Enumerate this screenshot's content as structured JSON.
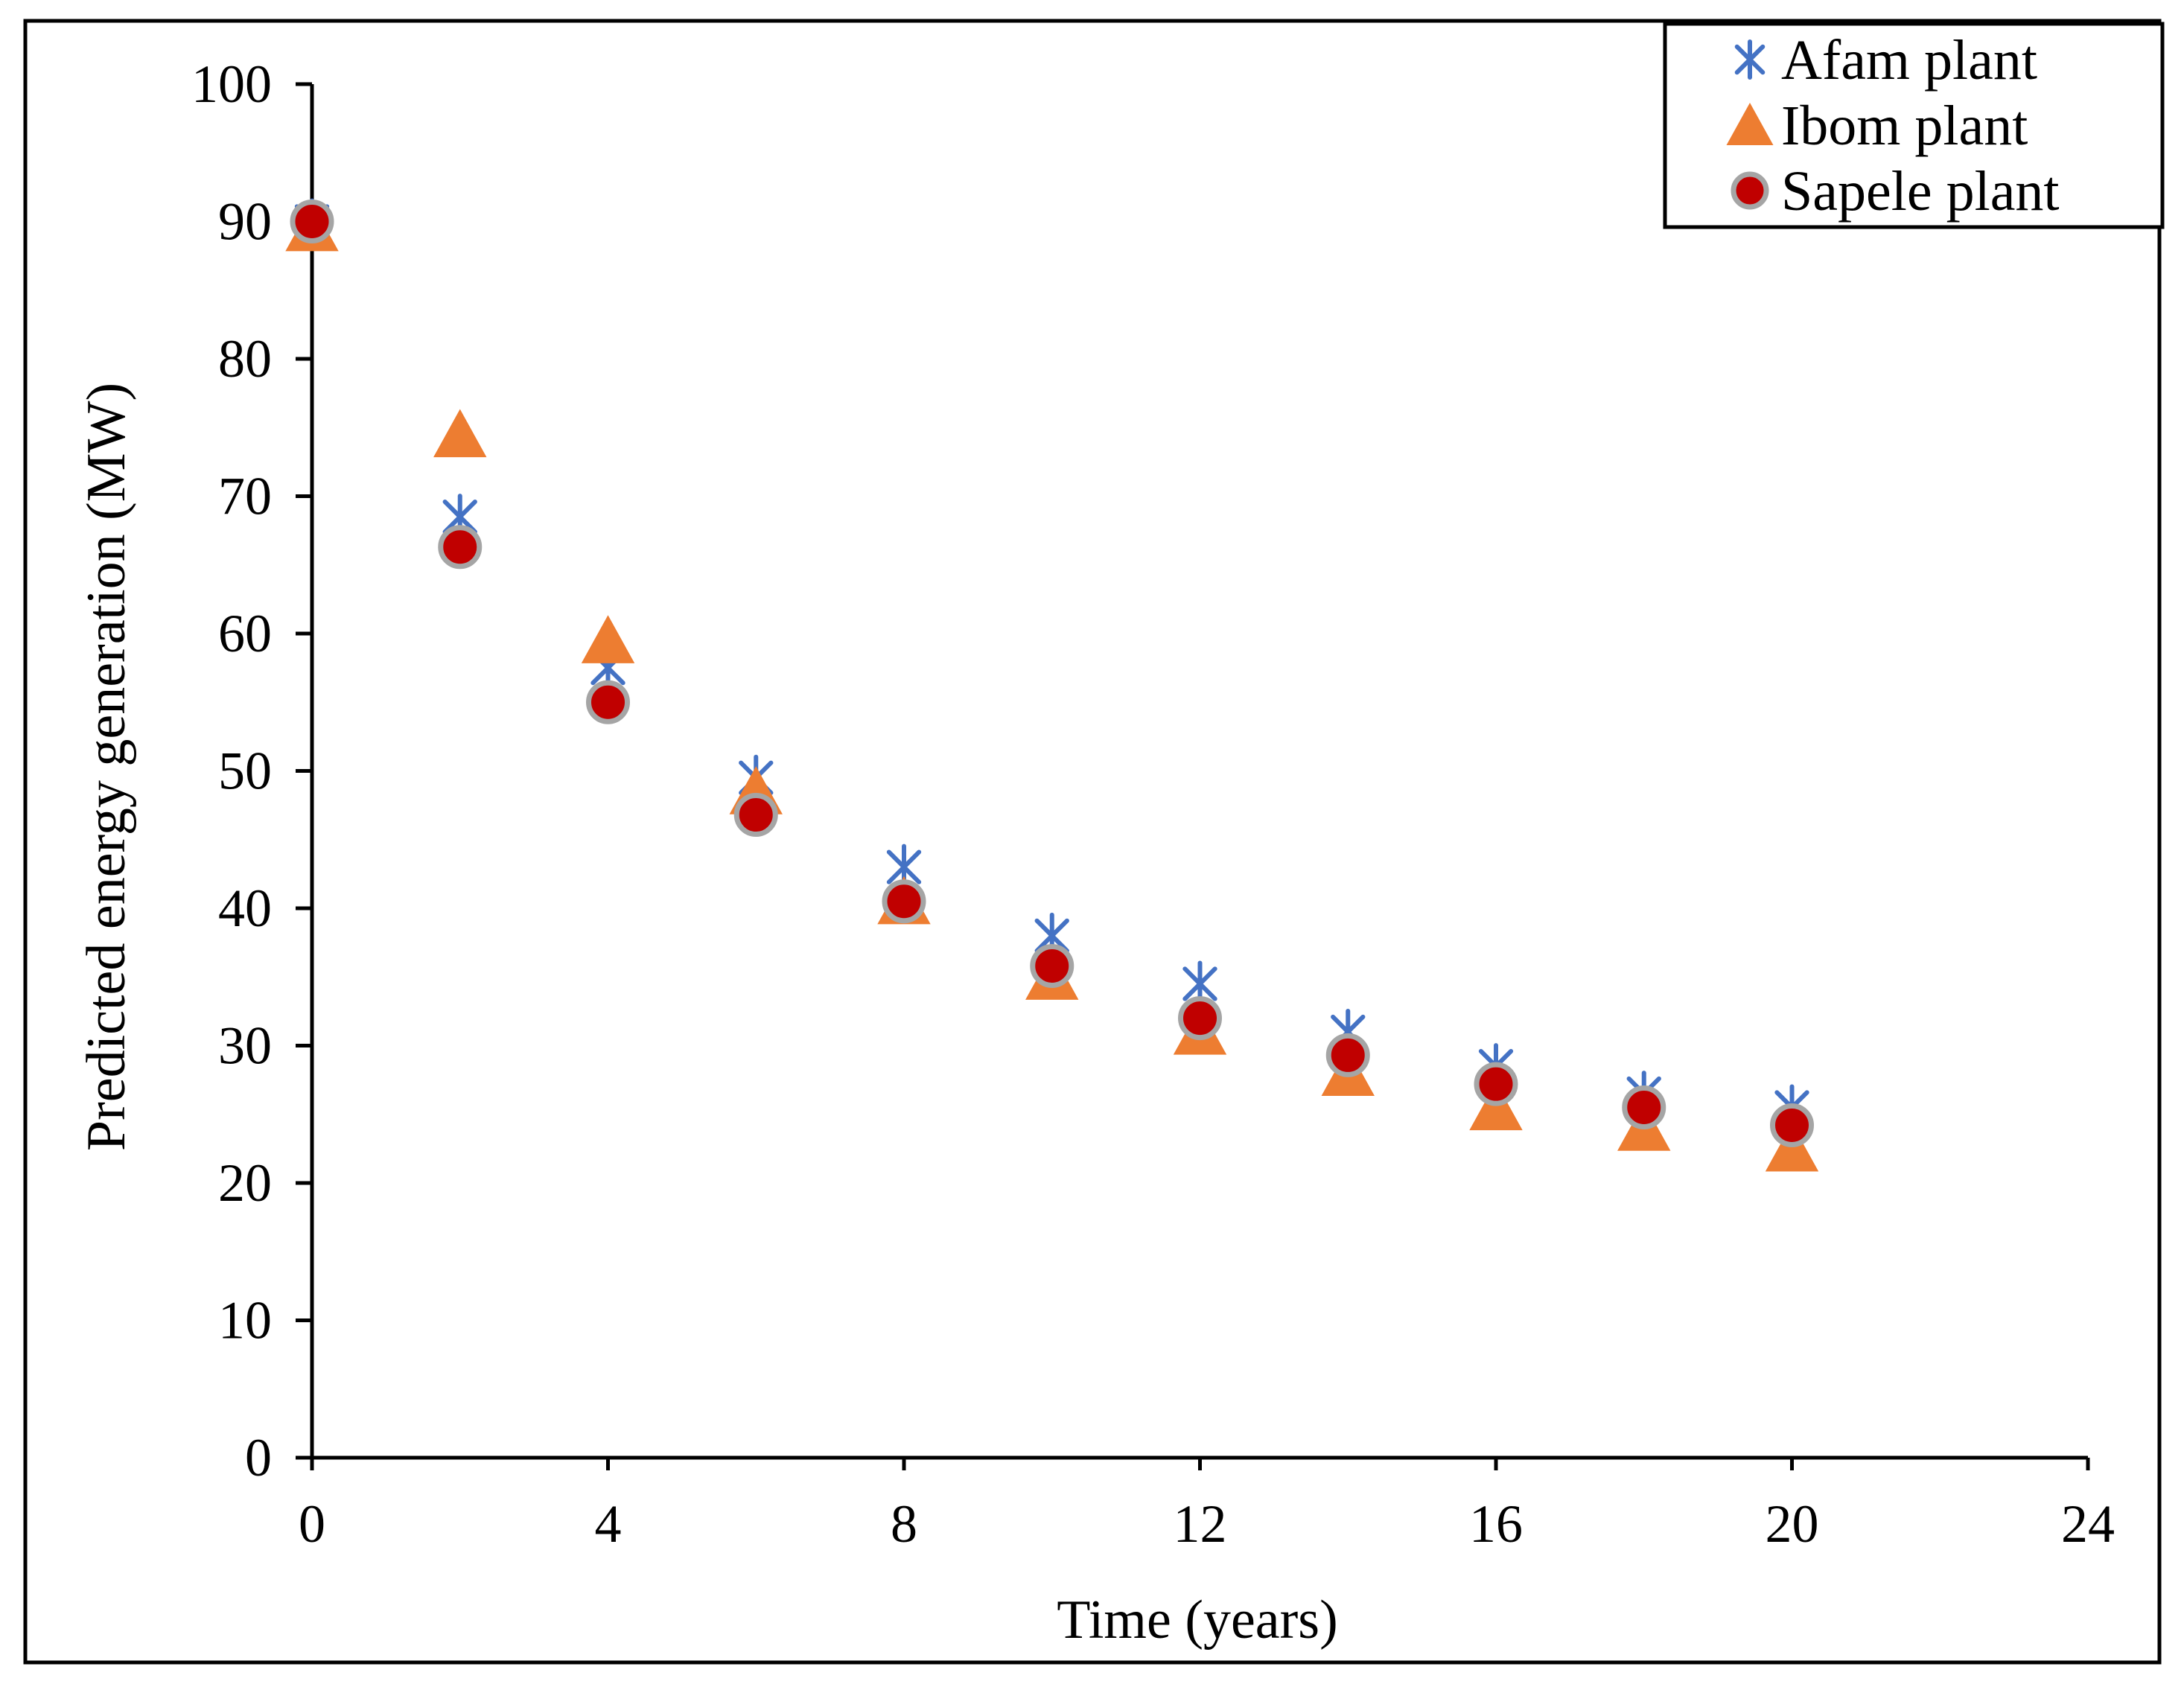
{
  "chart_data": {
    "type": "scatter",
    "title": "",
    "xlabel": "Time (years)",
    "ylabel": "Predicted energy generation (MW)",
    "xlim": [
      0,
      24
    ],
    "ylim": [
      0,
      100
    ],
    "xticks": [
      0,
      4,
      8,
      12,
      16,
      20,
      24
    ],
    "yticks": [
      0,
      10,
      20,
      30,
      40,
      50,
      60,
      70,
      80,
      90,
      100
    ],
    "grid": false,
    "legend_position": "top-right",
    "x": [
      0,
      2,
      4,
      6,
      8,
      10,
      12,
      14,
      16,
      18,
      20
    ],
    "series": [
      {
        "name": "Afam plant",
        "marker": "asterisk",
        "color": "#4472C4",
        "values": [
          90,
          68.5,
          57.5,
          49.5,
          43,
          38,
          34.5,
          31,
          28.5,
          26.5,
          25.5
        ]
      },
      {
        "name": "Ibom plant",
        "marker": "triangle",
        "color": "#ED7D31",
        "values": [
          89.5,
          74.5,
          59.5,
          48.5,
          40.5,
          35,
          31,
          28,
          25.5,
          24,
          22.5
        ]
      },
      {
        "name": "Sapele plant",
        "marker": "circle",
        "color": "#C00000",
        "edge_color": "#A5A5A5",
        "values": [
          90,
          66.3,
          55,
          46.8,
          40.5,
          35.8,
          32,
          29.3,
          27.2,
          25.5,
          24.2
        ]
      }
    ]
  }
}
